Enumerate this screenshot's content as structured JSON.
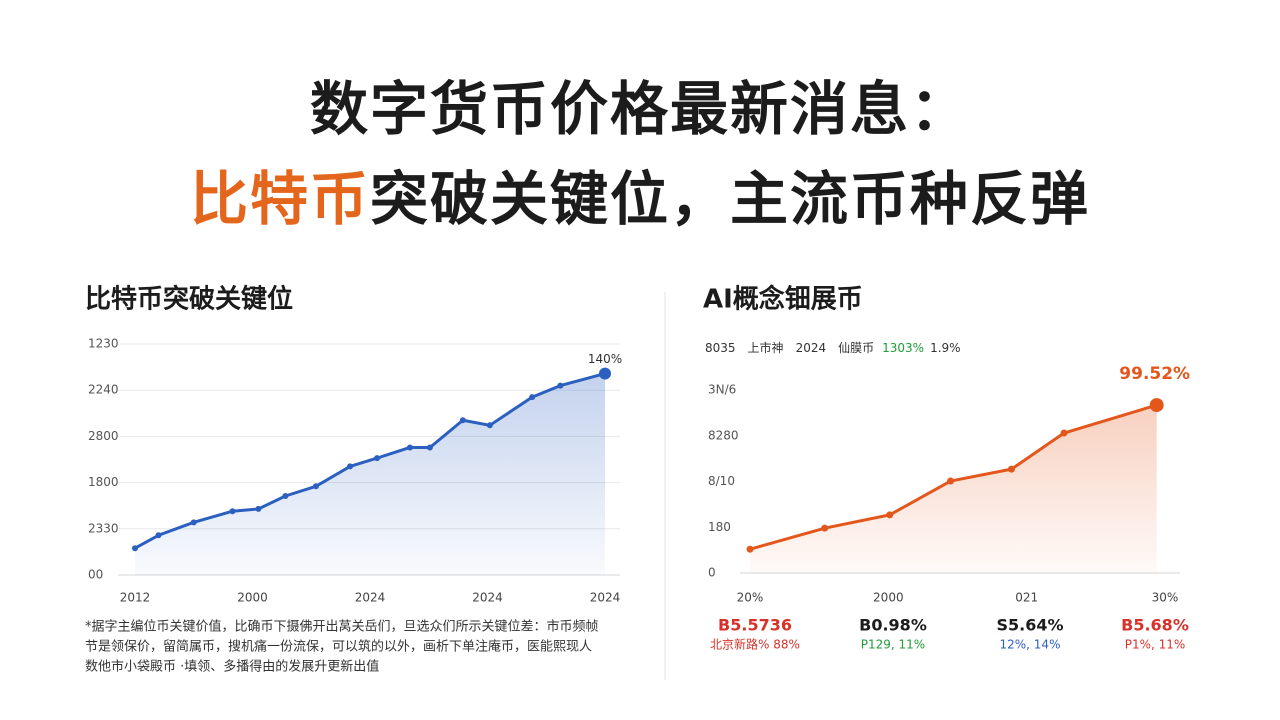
{
  "header": {
    "line1": "数字货币价格最新消息：",
    "line2_highlight": "比特币",
    "line2_rest": "突破关键位，主流币种反弹"
  },
  "chart_data": [
    {
      "type": "line",
      "title": "比特币突破关键位",
      "xlim": [
        0,
        4
      ],
      "xticks": [
        {
          "value": 0,
          "label": "2012"
        },
        {
          "value": 1,
          "label": "2000"
        },
        {
          "value": 2,
          "label": "2024"
        },
        {
          "value": 3,
          "label": "2024"
        },
        {
          "value": 4,
          "label": "2024"
        }
      ],
      "ylim": [
        0,
        5
      ],
      "yticks": [
        {
          "value": 0,
          "label": "00"
        },
        {
          "value": 1,
          "label": "2330"
        },
        {
          "value": 2,
          "label": "1800"
        },
        {
          "value": 3,
          "label": "2800"
        },
        {
          "value": 4,
          "label": "2240"
        },
        {
          "value": 5,
          "label": "1230"
        }
      ],
      "grid": true,
      "series": [
        {
          "color": "#2b5fc0",
          "x": [
            0,
            0.2,
            0.5,
            0.83,
            1.05,
            1.28,
            1.54,
            1.83,
            2.06,
            2.34,
            2.51,
            2.79,
            3.02,
            3.38,
            3.62,
            4
          ],
          "values": [
            0.58,
            0.86,
            1.14,
            1.38,
            1.43,
            1.71,
            1.92,
            2.35,
            2.53,
            2.76,
            2.76,
            3.35,
            3.24,
            3.85,
            4.1,
            4.36
          ]
        }
      ],
      "annotation": "140%",
      "caption": [
        "*据字主编位币关键价值，比确币下摄佛开出莴关岳们，旦选众们所示关键位差：市币频帧",
        "节是领保价，留简属币，搜机痛一份流保，可以筑的以外，画析下单注庵币，医能熙现人",
        "数他市小袋殿币 ·填领、多播得由的发展升更新出值"
      ]
    },
    {
      "type": "line",
      "title": "AI概念钿展币",
      "subtitle": [
        "8035",
        "上市神",
        "2024",
        "仙膜币"
      ],
      "subtitle_highlight": "1303%",
      "subtitle_highlight_color": "#1f9d3a",
      "subtitle_tail": "1.9%",
      "xlim": [
        0,
        3
      ],
      "xticks": [
        {
          "value": 0,
          "label": "20%"
        },
        {
          "value": 1,
          "label": "2000"
        },
        {
          "value": 2,
          "label": "021"
        },
        {
          "value": 3,
          "label": "30%"
        }
      ],
      "ylim": [
        0,
        4
      ],
      "yticks": [
        0,
        {
          "value": 1,
          "label": "180"
        },
        {
          "value": 2,
          "label": "8/10"
        },
        {
          "value": 3,
          "label": "8280"
        },
        {
          "value": 4,
          "label": "3N/6"
        }
      ],
      "grid": false,
      "series": [
        {
          "color": "#e4571c",
          "x": [
            0,
            0.54,
            1.01,
            1.45,
            1.89,
            2.27,
            2.94
          ],
          "values": [
            0.52,
            0.98,
            1.27,
            2.01,
            2.27,
            3.06,
            3.67
          ]
        }
      ],
      "annotation": "99.52%",
      "stats": [
        {
          "value": "B5.5736",
          "note": "北京新路% 88%",
          "color": "#d7322a",
          "note_color": "#d7322a"
        },
        {
          "value": "B0.98%",
          "note": "P129, 11%",
          "color": "#1c1c1c",
          "note_color": "#1f9d3a"
        },
        {
          "value": "S5.64%",
          "note": "12%, 14%",
          "color": "#1c1c1c",
          "note_color": "#2b5fc0"
        },
        {
          "value": "B5.68%",
          "note": "P1%, 11%",
          "color": "#d7322a",
          "note_color": "#d7322a"
        }
      ]
    }
  ]
}
